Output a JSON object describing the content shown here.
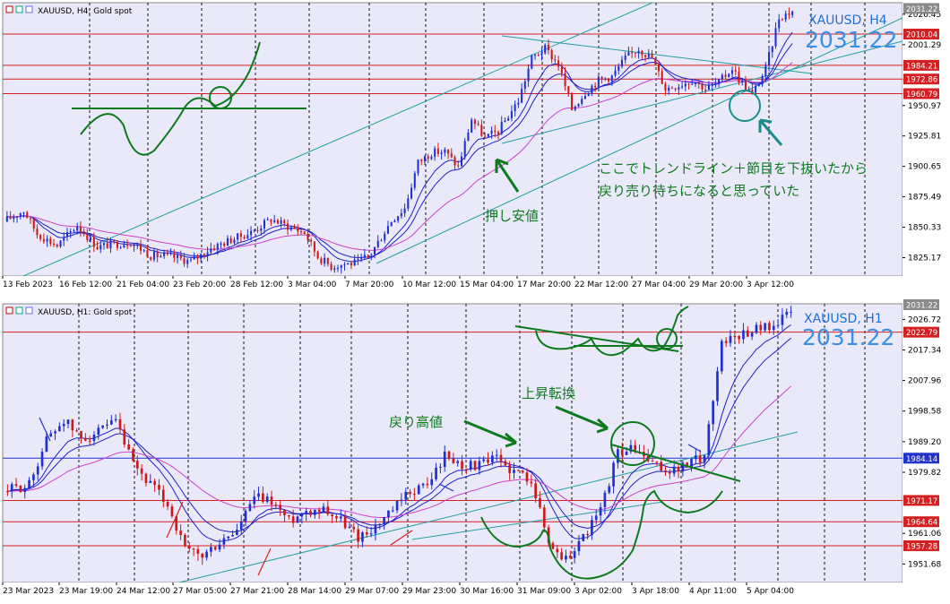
{
  "h4": {
    "header": "XAUUSD, H4:  Gold spot",
    "symbol_label": "XAUUSD, H4",
    "big_price": "2031.22",
    "notes": [
      "ここでトレンドライン＋節目を下抜いたから",
      "戻り売り待ちになると思っていた",
      "押し安値"
    ],
    "price_ticks": [
      "2026.45",
      "2001.29",
      "1950.97",
      "1925.81",
      "1900.65",
      "1875.49",
      "1850.33",
      "1825.17"
    ],
    "price_tags": [
      {
        "label": "2031.22",
        "kind": "gray"
      },
      {
        "label": "2010.04",
        "kind": "red"
      },
      {
        "label": "1984.21",
        "kind": "red"
      },
      {
        "label": "1972.86",
        "kind": "red"
      },
      {
        "label": "1960.79",
        "kind": "red"
      }
    ],
    "time_labels": [
      "13 Feb 2023",
      "16 Feb 12:00",
      "21 Feb 04:00",
      "23 Feb 20:00",
      "28 Feb 12:00",
      "3 Mar 04:00",
      "7 Mar 20:00",
      "10 Mar 12:00",
      "15 Mar 04:00",
      "17 Mar 20:00",
      "22 Mar 12:00",
      "27 Mar 04:00",
      "29 Mar 20:00",
      "3 Apr 12:00"
    ]
  },
  "h1": {
    "header": "XAUUSD, H1:  Gold spot",
    "symbol_label": "XAUUSD, H1",
    "big_price": "2031.22",
    "notes": [
      "戻り高値",
      "上昇転換"
    ],
    "price_ticks": [
      "2026.72",
      "2017.34",
      "2007.96",
      "1998.58",
      "1989.20",
      "1979.82",
      "1961.06",
      "1951.68"
    ],
    "price_tags": [
      {
        "label": "2031.22",
        "kind": "gray"
      },
      {
        "label": "2022.79",
        "kind": "red"
      },
      {
        "label": "1984.14",
        "kind": "blue"
      },
      {
        "label": "1971.17",
        "kind": "red"
      },
      {
        "label": "1964.64",
        "kind": "red"
      },
      {
        "label": "1957.28",
        "kind": "red"
      }
    ],
    "time_labels": [
      "23 Mar 2023",
      "23 Mar 19:00",
      "24 Mar 12:00",
      "27 Mar 05:00",
      "27 Mar 21:00",
      "28 Mar 14:00",
      "29 Mar 07:00",
      "29 Mar 23:00",
      "30 Mar 16:00",
      "31 Mar 09:00",
      "3 Apr 02:00",
      "3 Apr 18:00",
      "4 Apr 11:00",
      "5 Apr 04:00"
    ]
  },
  "chart_data": [
    {
      "type": "candlestick",
      "title": "XAUUSD, H4",
      "ylim": [
        1810,
        2036
      ],
      "price_lines": [
        2010.04,
        1984.21,
        1972.86,
        1960.79
      ],
      "current_price": 2031.22,
      "x": [
        "13 Feb 2023",
        "16 Feb 12:00",
        "21 Feb 04:00",
        "23 Feb 20:00",
        "28 Feb 12:00",
        "3 Mar 04:00",
        "7 Mar 20:00",
        "10 Mar 12:00",
        "15 Mar 04:00",
        "17 Mar 20:00",
        "22 Mar 12:00",
        "27 Mar 04:00",
        "29 Mar 20:00",
        "3 Apr 12:00"
      ],
      "close": [
        1855,
        1838,
        1835,
        1820,
        1828,
        1850,
        1815,
        1866,
        1918,
        1985,
        1995,
        1960,
        1980,
        2031
      ],
      "colors": {
        "bull": "#1f2fd0",
        "bear": "#d01818",
        "ma_fast": "#2020c8",
        "ma_slow": "#d040c8",
        "trend": "#20a0a0"
      }
    },
    {
      "type": "candlestick",
      "title": "XAUUSD, H1",
      "ylim": [
        1946,
        2031.5
      ],
      "price_lines": [
        2022.79,
        1984.14,
        1971.17,
        1964.64,
        1957.28
      ],
      "current_price": 2031.22,
      "x": [
        "23 Mar 2023",
        "23 Mar 19:00",
        "24 Mar 12:00",
        "27 Mar 05:00",
        "27 Mar 21:00",
        "28 Mar 14:00",
        "29 Mar 07:00",
        "29 Mar 23:00",
        "30 Mar 16:00",
        "31 Mar 09:00",
        "3 Apr 02:00",
        "3 Apr 18:00",
        "4 Apr 11:00",
        "5 Apr 04:00"
      ],
      "close": [
        1974,
        1992,
        1993,
        1955,
        1958,
        1966,
        1970,
        1964,
        1982,
        1978,
        1956,
        1986,
        2020,
        2025
      ],
      "colors": {
        "bull": "#1f2fd0",
        "bear": "#d01818",
        "ma_fast": "#2020c8",
        "ma_slow": "#d040c8",
        "trend": "#20a0a0"
      }
    }
  ]
}
